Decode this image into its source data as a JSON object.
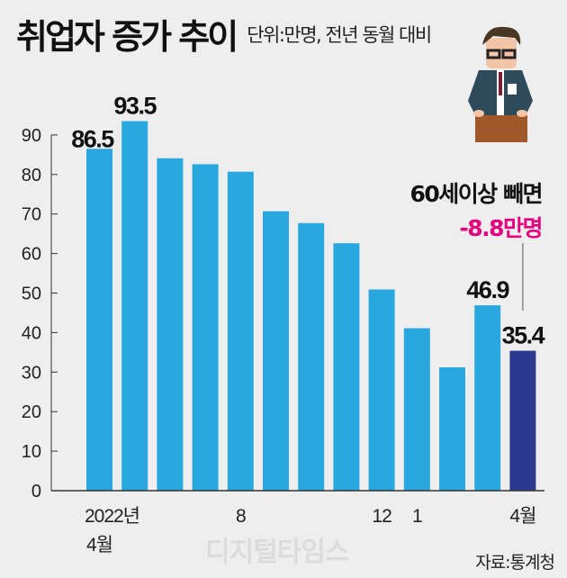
{
  "chart_data": {
    "type": "bar",
    "title": "취업자 증가 추이",
    "subtitle": "단위:만명, 전년 동월 대비",
    "categories": [
      "2022-04",
      "2022-05",
      "2022-06",
      "2022-07",
      "2022-08",
      "2022-09",
      "2022-10",
      "2022-11",
      "2022-12",
      "2023-01",
      "2023-02",
      "2023-03",
      "2023-04"
    ],
    "values": [
      86.5,
      93.5,
      84.1,
      82.6,
      80.7,
      70.7,
      67.7,
      62.6,
      50.9,
      41.1,
      31.2,
      46.9,
      35.4
    ],
    "data_labels": [
      {
        "index": 0,
        "text": "86.5"
      },
      {
        "index": 1,
        "text": "93.5"
      },
      {
        "index": 11,
        "text": "46.9"
      },
      {
        "index": 12,
        "text": "35.4"
      }
    ],
    "x_tick_labels": [
      {
        "index": 0,
        "text": "2022년"
      },
      {
        "index": 0,
        "text": "4월",
        "line": 2
      },
      {
        "index": 4,
        "text": "8"
      },
      {
        "index": 8,
        "text": "12"
      },
      {
        "index": 9,
        "text": "1"
      },
      {
        "index": 12,
        "text": "4월"
      }
    ],
    "y_ticks": [
      0,
      10,
      20,
      30,
      40,
      50,
      60,
      70,
      80,
      90
    ],
    "ylim": [
      0,
      100
    ],
    "annotation": {
      "line1": "60세이상 빼면",
      "line2": "-8.8만명"
    },
    "source": "자료:통계청",
    "watermark": "디지털타임스",
    "colors": {
      "bar": "#29a8e0",
      "highlight": "#2b3a8e",
      "annotation": "#e4007f"
    }
  }
}
